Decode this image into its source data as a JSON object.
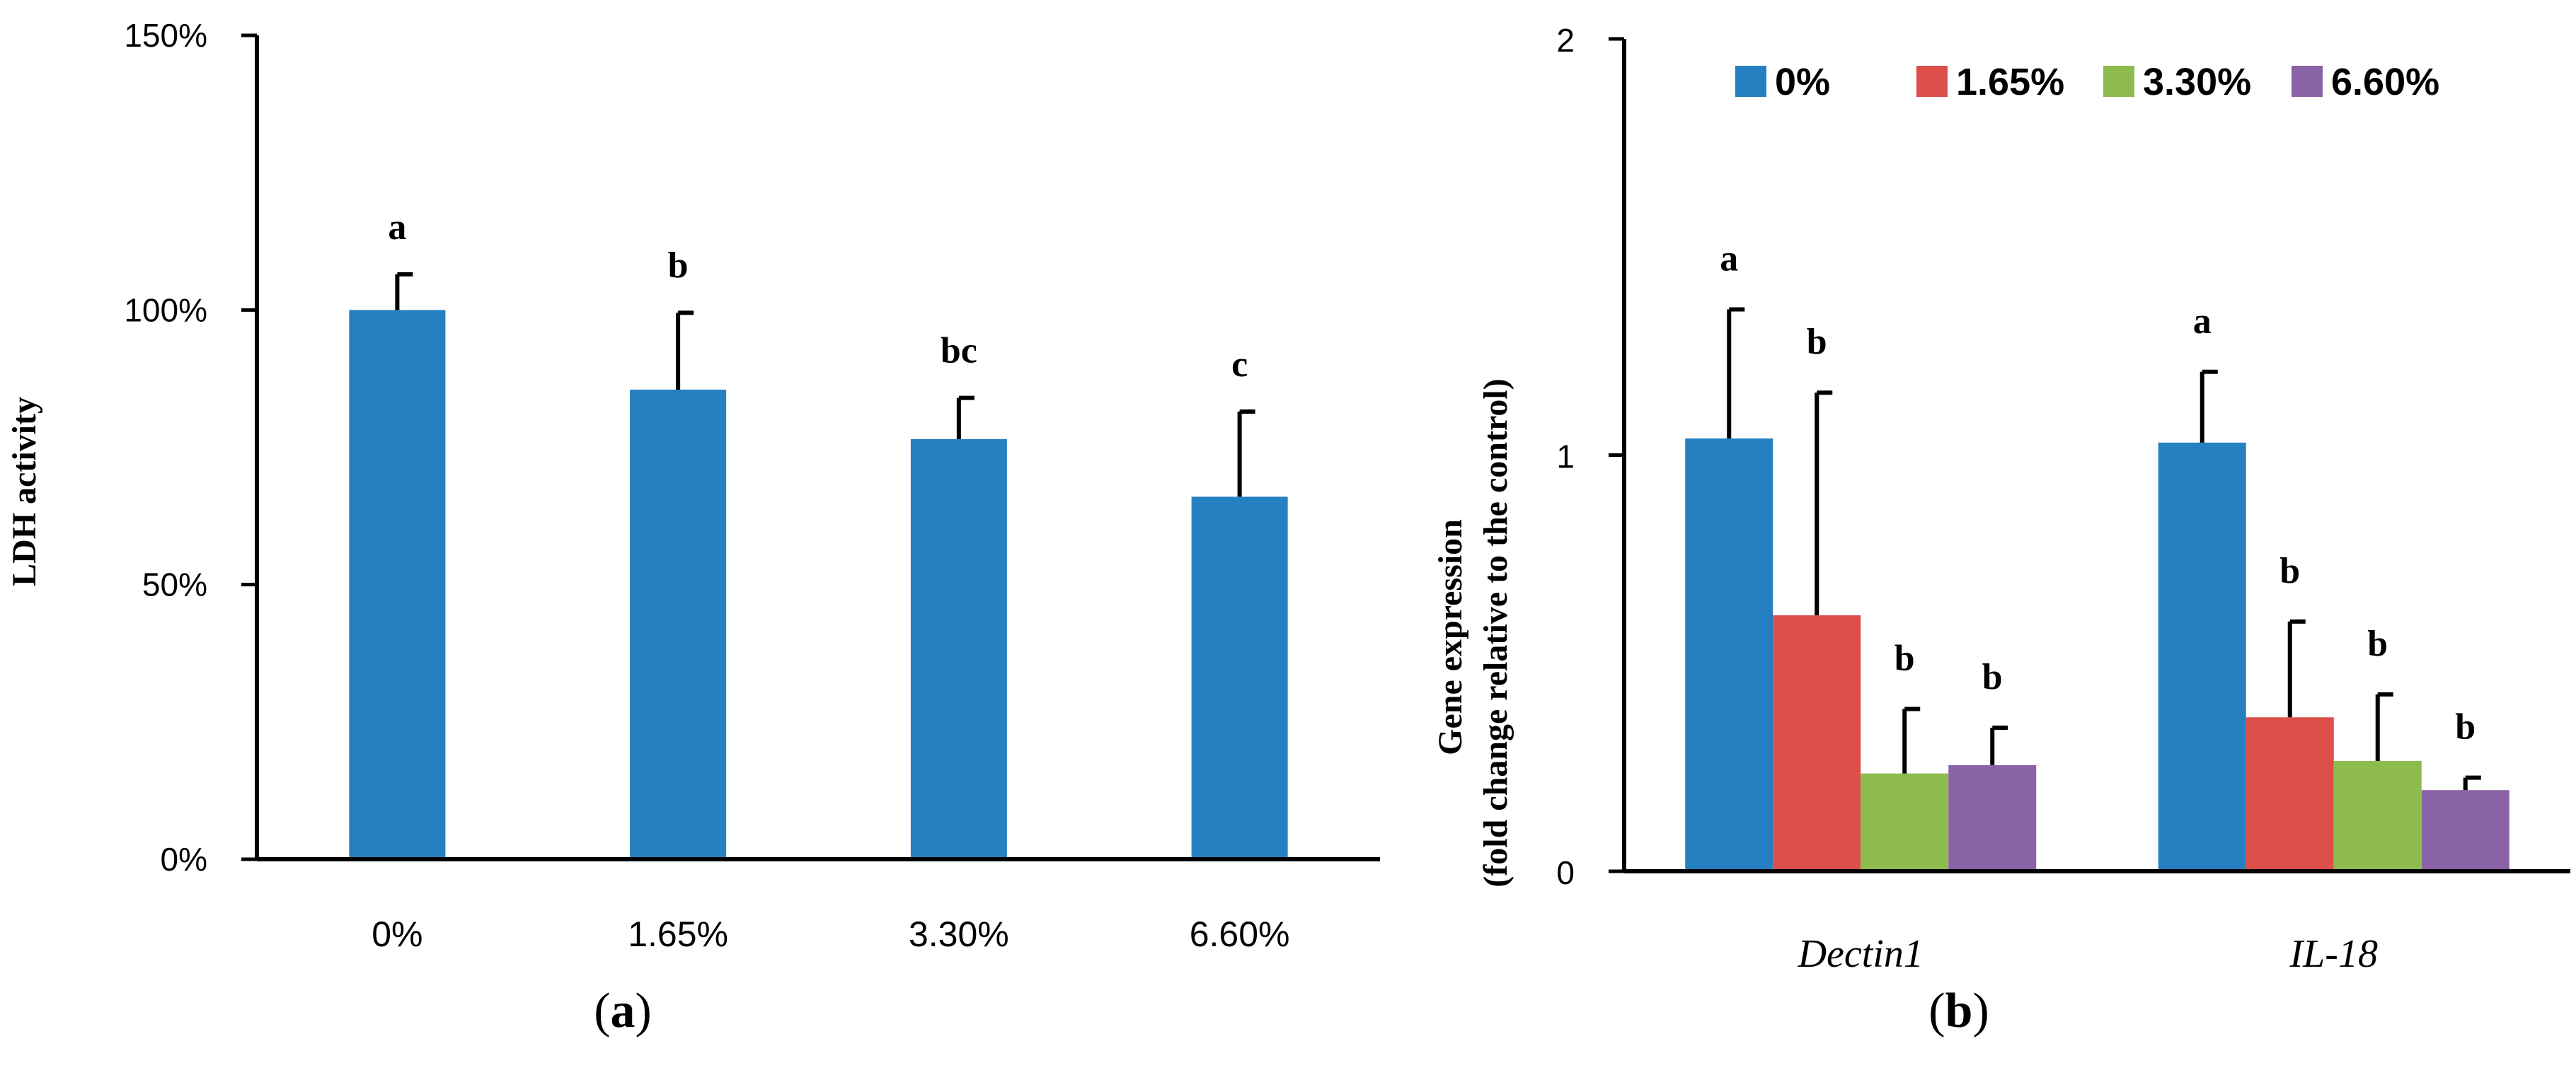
{
  "chart_data": [
    {
      "type": "bar",
      "panel_label": "a",
      "title": "",
      "xlabel": "",
      "ylabel": "LDH activity",
      "ylim": [
        0,
        150
      ],
      "yticks": [
        "0%",
        "50%",
        "100%",
        "150%"
      ],
      "categories": [
        "0%",
        "1.65%",
        "3.30%",
        "6.60%"
      ],
      "values": [
        100,
        85.5,
        76.5,
        66
      ],
      "errors": [
        6.5,
        14,
        7.5,
        15.5
      ],
      "significance": [
        "a",
        "b",
        "bc",
        "c"
      ],
      "color": "#2580C1",
      "grid": false
    },
    {
      "type": "bar",
      "panel_label": "b",
      "title": "",
      "xlabel": "",
      "ylabel": "Gene expression",
      "ylabel2": "(fold change relative to the control)",
      "ylim": [
        0,
        2
      ],
      "yticks": [
        "0",
        "1",
        "2"
      ],
      "categories": [
        "Dectin1",
        "IL-18"
      ],
      "series": [
        {
          "name": "0%",
          "color": "#2580C1",
          "values": [
            1.04,
            1.03
          ],
          "errors": [
            0.31,
            0.17
          ],
          "significance": [
            "a",
            "a"
          ]
        },
        {
          "name": "1.65%",
          "color": "#DD4F4A",
          "values": [
            0.615,
            0.37
          ],
          "errors": [
            0.535,
            0.23
          ],
          "significance": [
            "b",
            "b"
          ]
        },
        {
          "name": "3.30%",
          "color": "#8DBB4E",
          "values": [
            0.235,
            0.265
          ],
          "errors": [
            0.155,
            0.16
          ],
          "significance": [
            "b",
            "b"
          ]
        },
        {
          "name": "6.60%",
          "color": "#8A62A6",
          "values": [
            0.255,
            0.195
          ],
          "errors": [
            0.09,
            0.03
          ],
          "significance": [
            "b",
            "b"
          ]
        }
      ],
      "legend_position": "top",
      "grid": false
    }
  ]
}
